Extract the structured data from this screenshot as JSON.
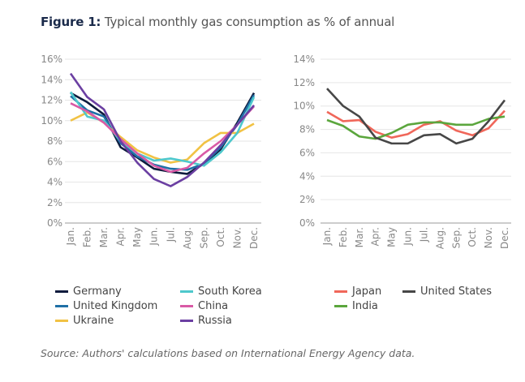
{
  "title": {
    "prefix": "Figure 1:",
    "text": "Typical monthly gas consumption as % of annual"
  },
  "source": "Source: Authors' calculations based on International Energy Agency data.",
  "chart_data": [
    {
      "type": "line",
      "categories": [
        "Jan.",
        "Feb.",
        "Mar.",
        "Apr.",
        "May",
        "Jun.",
        "Jul.",
        "Aug.",
        "Sep.",
        "Oct.",
        "Nov.",
        "Dec."
      ],
      "ylim": [
        0,
        16
      ],
      "yticks": [
        "0%",
        "2%",
        "4%",
        "6%",
        "8%",
        "10%",
        "12%",
        "14%",
        "16%"
      ],
      "grid": true,
      "series": [
        {
          "name": "Germany",
          "color": "#0e1b3d",
          "values": [
            12.7,
            11.8,
            10.6,
            7.4,
            6.4,
            5.3,
            5.0,
            4.8,
            5.8,
            7.2,
            9.8,
            12.7
          ]
        },
        {
          "name": "United Kingdom",
          "color": "#1f70a6",
          "values": [
            12.4,
            11.0,
            10.4,
            7.8,
            6.5,
            5.7,
            5.3,
            5.2,
            5.8,
            7.4,
            9.6,
            12.5
          ]
        },
        {
          "name": "Ukraine",
          "color": "#f1c244",
          "values": [
            10.0,
            10.8,
            9.8,
            8.4,
            7.1,
            6.4,
            5.9,
            6.2,
            7.8,
            8.8,
            8.8,
            9.7
          ]
        },
        {
          "name": "South Korea",
          "color": "#4ec8cc",
          "values": [
            12.8,
            10.4,
            10.0,
            8.0,
            6.8,
            6.1,
            6.3,
            6.0,
            5.6,
            6.9,
            8.8,
            12.3
          ]
        },
        {
          "name": "China",
          "color": "#d95aa6",
          "values": [
            11.7,
            10.9,
            9.8,
            8.2,
            6.8,
            5.6,
            5.0,
            5.4,
            6.8,
            8.0,
            9.6,
            11.4
          ]
        },
        {
          "name": "Russia",
          "color": "#6b3fa2",
          "values": [
            14.6,
            12.3,
            11.1,
            8.0,
            5.9,
            4.3,
            3.6,
            4.5,
            5.9,
            7.6,
            9.6,
            11.5
          ]
        }
      ],
      "legend": "bottom"
    },
    {
      "type": "line",
      "categories": [
        "Jan.",
        "Feb.",
        "Mar.",
        "Apr.",
        "May",
        "Jun.",
        "Jul.",
        "Aug.",
        "Sep.",
        "Oct.",
        "Nov.",
        "Dec."
      ],
      "ylim": [
        0,
        14
      ],
      "yticks": [
        "0%",
        "2%",
        "4%",
        "6%",
        "8%",
        "10%",
        "12%",
        "14%"
      ],
      "grid": true,
      "series": [
        {
          "name": "Japan",
          "color": "#f0675a",
          "values": [
            9.5,
            8.7,
            8.8,
            7.8,
            7.3,
            7.6,
            8.4,
            8.7,
            7.9,
            7.5,
            8.1,
            9.6
          ]
        },
        {
          "name": "India",
          "color": "#5ba63d",
          "values": [
            8.8,
            8.3,
            7.4,
            7.2,
            7.7,
            8.4,
            8.6,
            8.6,
            8.4,
            8.4,
            8.9,
            9.1
          ]
        },
        {
          "name": "United States",
          "color": "#474747",
          "values": [
            11.5,
            10.0,
            9.1,
            7.3,
            6.8,
            6.8,
            7.5,
            7.6,
            6.8,
            7.2,
            8.7,
            10.5
          ]
        }
      ],
      "legend": "bottom"
    }
  ]
}
